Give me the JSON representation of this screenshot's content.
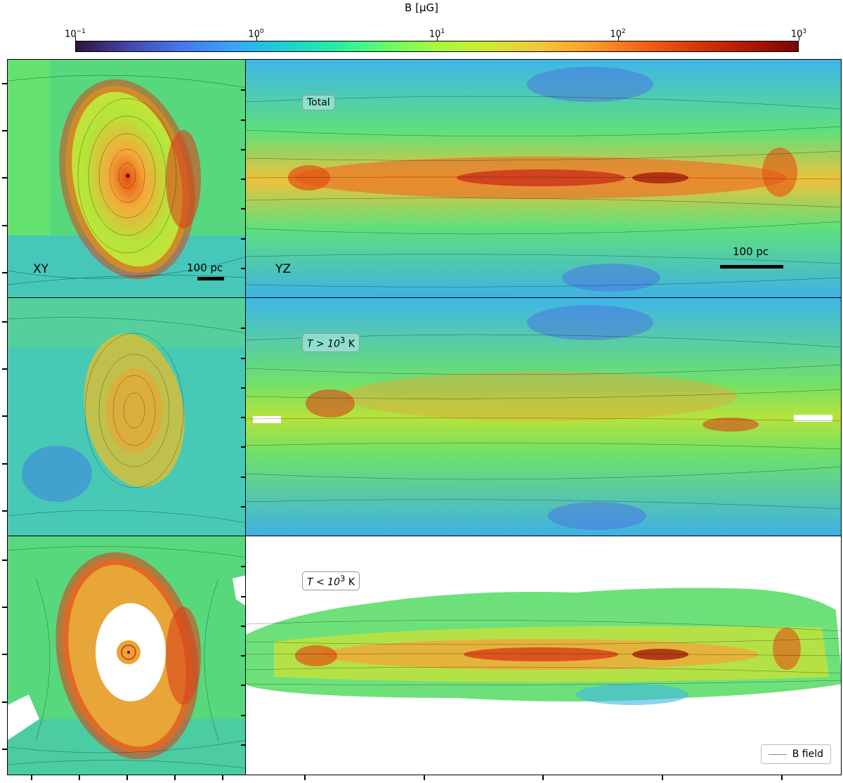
{
  "colorbar": {
    "title": "B [μG]",
    "ticks": [
      {
        "base": "10",
        "exp": "−1"
      },
      {
        "base": "10",
        "exp": "0"
      },
      {
        "base": "10",
        "exp": "1"
      },
      {
        "base": "10",
        "exp": "2"
      },
      {
        "base": "10",
        "exp": "3"
      }
    ],
    "colormap": "turbo",
    "scale": "log"
  },
  "panels": {
    "row1": {
      "label": "Total",
      "xy_label": "XY",
      "yz_label": "YZ",
      "scale_left": "100 pc",
      "scale_right": "100 pc"
    },
    "row2": {
      "label_prefix": "T > 10",
      "label_exp": "3",
      "label_suffix": " K"
    },
    "row3": {
      "label_prefix": "T < 10",
      "label_exp": "3",
      "label_suffix": " K"
    }
  },
  "legend": {
    "label": "B field"
  },
  "colors": {
    "low": "#30123b",
    "mid": "#46f884",
    "high": "#7a0403",
    "streamline": "#000000",
    "legend_line": "#888888"
  }
}
